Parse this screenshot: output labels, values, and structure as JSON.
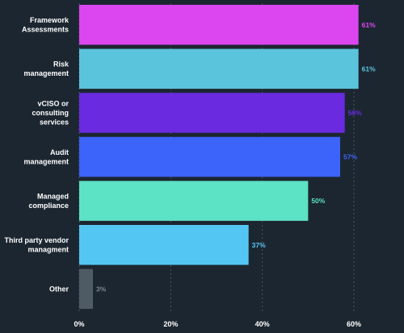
{
  "chart_data": {
    "type": "bar",
    "orientation": "horizontal",
    "categories": [
      [
        "Framework",
        "Assessments"
      ],
      [
        "Risk",
        "management"
      ],
      [
        "vCISO or",
        "consulting",
        "services"
      ],
      [
        "Audit",
        "management"
      ],
      [
        "Managed",
        "compliance"
      ],
      [
        "Third party vendor",
        "managment"
      ],
      [
        "Other"
      ]
    ],
    "values": [
      61,
      61,
      58,
      57,
      50,
      37,
      3
    ],
    "value_labels": [
      "61%",
      "61%",
      "58%",
      "57%",
      "50%",
      "37%",
      "3%"
    ],
    "colors": [
      "#dc46f0",
      "#5ac4dc",
      "#6a2ae0",
      "#3c63fa",
      "#5ce2c4",
      "#54c6f4",
      "#4e5a64"
    ],
    "xticks": [
      "0%",
      "20%",
      "40%",
      "60%"
    ],
    "xtick_values": [
      0,
      20,
      40,
      60
    ],
    "xlim": [
      0,
      70
    ],
    "grid": true,
    "title": "",
    "xlabel": "",
    "ylabel": ""
  }
}
